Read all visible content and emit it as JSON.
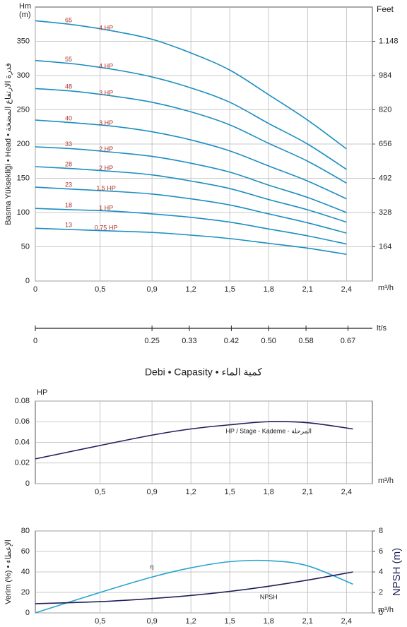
{
  "caption": "Debi • Capasity • كمية الماء",
  "chart_data": [
    {
      "type": "line",
      "y_unit": [
        "Hm",
        "(m)"
      ],
      "y_title": "Basma Yüksekliği • Head • قدرة الارتفاع المضخة",
      "y2_unit": "Feet",
      "x_unit": "m³/h",
      "xlim": [
        0,
        2.6
      ],
      "ylim": [
        0,
        400
      ],
      "y2lim": [
        0,
        1312
      ],
      "xticks": [
        0,
        {
          "value": 0.5,
          "label": "0,5"
        },
        {
          "value": 0.9,
          "label": "0,9"
        },
        {
          "value": 1.2,
          "label": "1,2"
        },
        {
          "value": 1.5,
          "label": "1,5"
        },
        {
          "value": 1.8,
          "label": "1,8"
        },
        {
          "value": 2.1,
          "label": "2,1"
        },
        {
          "value": 2.4,
          "label": "2,4"
        }
      ],
      "yticks": [
        0,
        50,
        100,
        150,
        200,
        250,
        300,
        350
      ],
      "y2ticks": [
        {
          "value": 164,
          "label": "164"
        },
        {
          "value": 328,
          "label": "328"
        },
        {
          "value": 492,
          "label": "492"
        },
        {
          "value": 656,
          "label": "656"
        },
        {
          "value": 820,
          "label": "820"
        },
        {
          "value": 984,
          "label": "984"
        },
        {
          "value": 1148,
          "label": "1.148"
        }
      ],
      "grid": true,
      "x": [
        0,
        0.3,
        0.6,
        0.9,
        1.2,
        1.5,
        1.8,
        2.1,
        2.4
      ],
      "series": [
        {
          "name": "65",
          "hp": "4 HP",
          "color": "#1b8ec2",
          "values": [
            380,
            374,
            365,
            353,
            333,
            308,
            272,
            235,
            193
          ]
        },
        {
          "name": "55",
          "hp": "4 HP",
          "color": "#1b8ec2",
          "values": [
            322,
            317,
            309,
            298,
            282,
            261,
            230,
            200,
            163
          ]
        },
        {
          "name": "48",
          "hp": "3 HP",
          "color": "#1b8ec2",
          "values": [
            281,
            277,
            270,
            261,
            247,
            228,
            201,
            175,
            143
          ]
        },
        {
          "name": "40",
          "hp": "3 HP",
          "color": "#1b8ec2",
          "values": [
            235,
            231,
            226,
            218,
            206,
            190,
            168,
            146,
            120
          ]
        },
        {
          "name": "33",
          "hp": "2 HP",
          "color": "#1b8ec2",
          "values": [
            196,
            193,
            188,
            182,
            172,
            159,
            140,
            122,
            100
          ]
        },
        {
          "name": "28",
          "hp": "2 HP",
          "color": "#1b8ec2",
          "values": [
            167,
            164,
            160,
            155,
            146,
            135,
            119,
            104,
            86
          ]
        },
        {
          "name": "23",
          "hp": "1,5 HP",
          "color": "#1b8ec2",
          "values": [
            137,
            134,
            131,
            127,
            120,
            111,
            98,
            85,
            70
          ]
        },
        {
          "name": "18",
          "hp": "1 HP",
          "color": "#1b8ec2",
          "values": [
            106,
            104,
            102,
            98,
            93,
            86,
            76,
            66,
            54
          ]
        },
        {
          "name": "13",
          "hp": "0,75 HP",
          "color": "#1b8ec2",
          "values": [
            77,
            75,
            73,
            71,
            67,
            62,
            55,
            48,
            39
          ]
        }
      ]
    },
    {
      "type": "axis",
      "x_unit": "lt/s",
      "xlim": [
        0,
        0.7222
      ],
      "xticks": [
        0,
        0.25,
        0.33,
        0.42,
        {
          "value": 0.5,
          "label": "0.50"
        },
        0.58,
        0.67
      ]
    },
    {
      "type": "line",
      "y_unit": [
        "HP"
      ],
      "x_unit": "m³/h",
      "xlim": [
        0,
        2.6
      ],
      "ylim": [
        0,
        0.08
      ],
      "xticks": [
        {
          "value": 0.5,
          "label": "0,5"
        },
        {
          "value": 0.9,
          "label": "0,9"
        },
        {
          "value": 1.2,
          "label": "1,2"
        },
        {
          "value": 1.5,
          "label": "1,5"
        },
        {
          "value": 1.8,
          "label": "1,8"
        },
        {
          "value": 2.1,
          "label": "2,1"
        },
        {
          "value": 2.4,
          "label": "2,4"
        }
      ],
      "yticks": [
        0,
        0.02,
        0.04,
        0.06,
        0.08
      ],
      "grid": true,
      "x": [
        0,
        0.5,
        0.9,
        1.2,
        1.5,
        1.8,
        2.1,
        2.45
      ],
      "series": [
        {
          "name": "HP / Stage - Kademe - المرحلة",
          "color": "#1f1f5c",
          "values": [
            0.024,
            0.037,
            0.047,
            0.053,
            0.057,
            0.06,
            0.059,
            0.053
          ]
        }
      ]
    },
    {
      "type": "line",
      "y_title": "Verim (%) • الإعطاء",
      "y2_title": "NPSH (m)",
      "x_unit": "m³/h",
      "xlim": [
        0,
        2.6
      ],
      "ylim": [
        0,
        80
      ],
      "y2lim": [
        0,
        8
      ],
      "xticks": [
        {
          "value": 0.5,
          "label": "0,5"
        },
        {
          "value": 0.9,
          "label": "0,9"
        },
        {
          "value": 1.2,
          "label": "1,2"
        },
        {
          "value": 1.5,
          "label": "1,5"
        },
        {
          "value": 1.8,
          "label": "1,8"
        },
        {
          "value": 2.1,
          "label": "2,1"
        },
        {
          "value": 2.4,
          "label": "2,4"
        }
      ],
      "yticks": [
        0,
        20,
        40,
        60,
        80
      ],
      "y2ticks": [
        0,
        2,
        4,
        6,
        8
      ],
      "grid": true,
      "x": [
        0,
        0.5,
        0.9,
        1.2,
        1.5,
        1.8,
        2.1,
        2.45
      ],
      "series": [
        {
          "name": "η",
          "color": "#2aa3d2",
          "values": [
            0,
            20,
            35,
            44,
            50,
            51,
            46,
            28
          ]
        },
        {
          "name": "NPSH",
          "color": "#1f1f5c",
          "axis": "y2",
          "values": [
            0.9,
            1.1,
            1.4,
            1.7,
            2.1,
            2.6,
            3.2,
            4.0
          ]
        }
      ]
    }
  ]
}
